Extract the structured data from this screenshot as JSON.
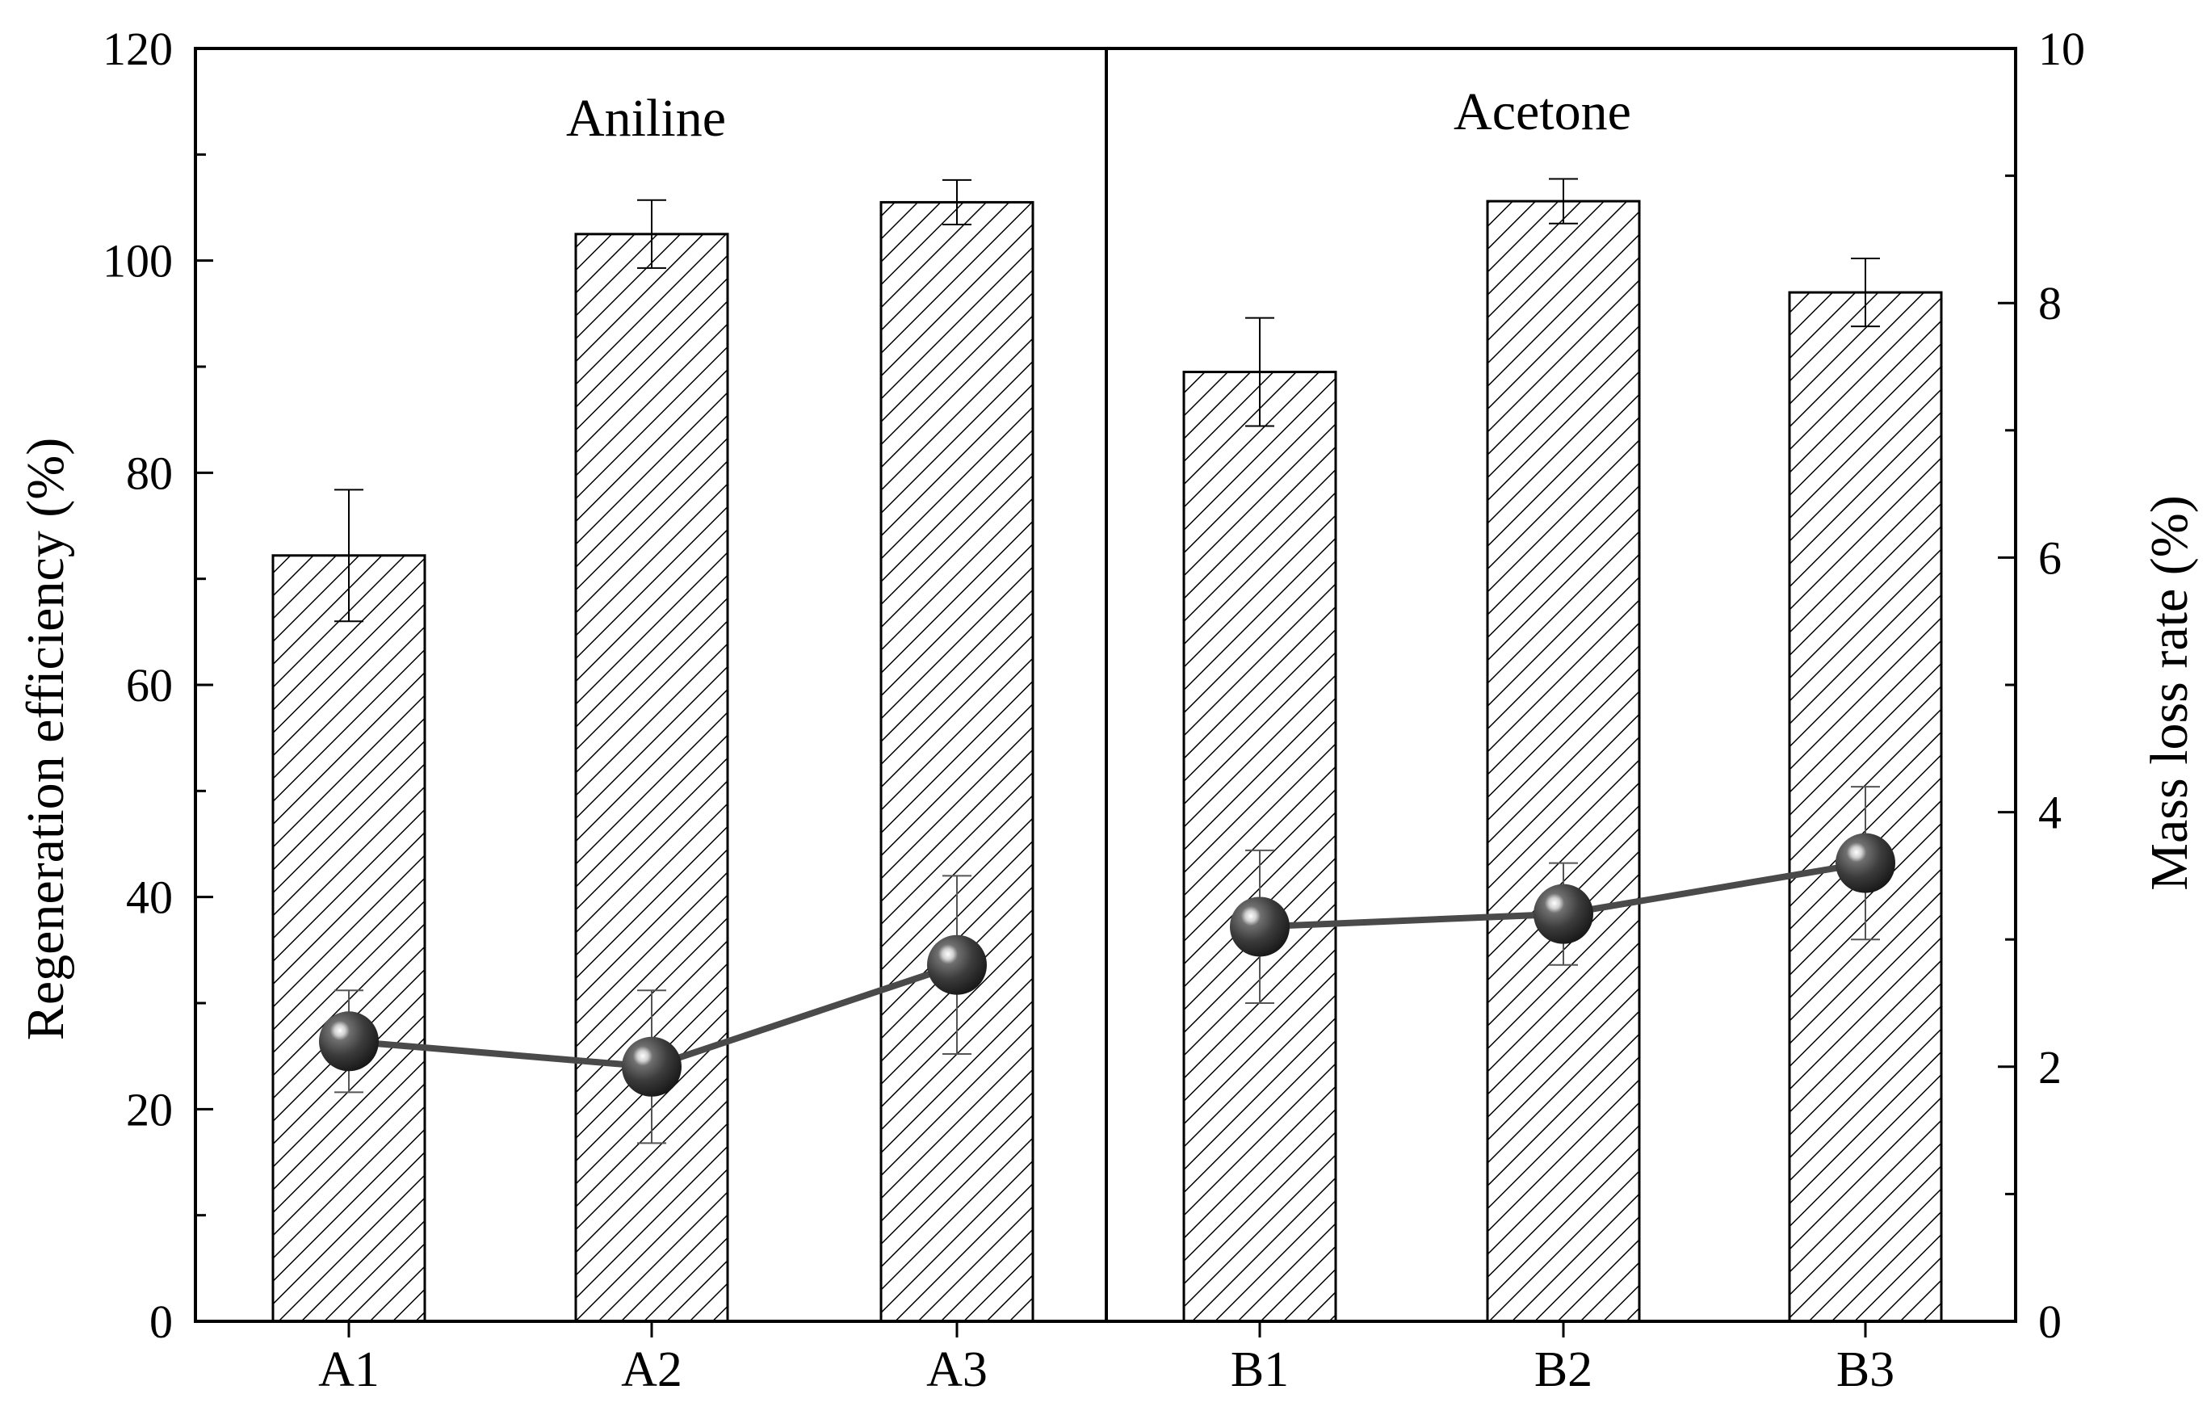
{
  "chart_data": {
    "type": "bar",
    "title": "",
    "categories": [
      "A1",
      "A2",
      "A3",
      "B1",
      "B2",
      "B3"
    ],
    "panels": [
      "Aniline",
      "Acetone"
    ],
    "series": [
      {
        "name": "Regeneration efficiency",
        "type": "bar",
        "axis": "left",
        "values": [
          72.2,
          102.5,
          105.5,
          89.5,
          105.6,
          97.0
        ],
        "errors": [
          6.2,
          3.2,
          2.1,
          5.1,
          2.1,
          3.2
        ]
      },
      {
        "name": "Mass loss rate",
        "type": "line",
        "axis": "right",
        "values": [
          2.2,
          2.0,
          2.8,
          3.1,
          3.2,
          3.6
        ],
        "errors": [
          0.4,
          0.6,
          0.7,
          0.6,
          0.4,
          0.6
        ]
      }
    ],
    "ylabel": "Regeneration efficiency (%)",
    "ylabel_right": "Mass loss rate (%)",
    "ylim": [
      0,
      120
    ],
    "ylim_right": [
      0,
      10
    ],
    "yticks": [
      "0",
      "20",
      "40",
      "60",
      "80",
      "100",
      "120"
    ],
    "yticks_right": [
      "0",
      "2",
      "4",
      "6",
      "8",
      "10"
    ],
    "grid": false
  }
}
